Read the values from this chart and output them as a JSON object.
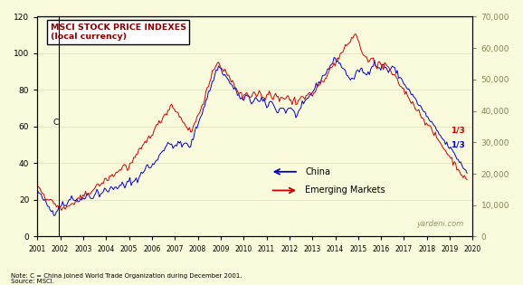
{
  "title_line1": "MSCI STOCK PRICE INDEXES",
  "title_line2": "(local currency)",
  "background_color": "#FAFADC",
  "china_color": "#0000CC",
  "em_color": "#CC0000",
  "left_ylim": [
    0,
    120
  ],
  "right_ylim": [
    0,
    70000
  ],
  "left_yticks": [
    0,
    20,
    40,
    60,
    80,
    100,
    120
  ],
  "right_yticks": [
    0,
    10000,
    20000,
    30000,
    40000,
    50000,
    60000,
    70000
  ],
  "note": "Note: C = China joined World Trade Organization during December 2001.",
  "source": "Source: MSCI.",
  "watermark": "yardeni.com",
  "china_label": "China",
  "em_label": "Emerging Markets",
  "annotation_c": "C",
  "annotation_13_blue": "1/3",
  "annotation_13_red": "1/3",
  "xlabel_years": [
    "2001",
    "2002",
    "2003",
    "2004",
    "2005",
    "2006",
    "2007",
    "2008",
    "2009",
    "2010",
    "2011",
    "2012",
    "2013",
    "2014",
    "2015",
    "2016",
    "2017",
    "2018",
    "2019",
    "2020"
  ],
  "china_data": [
    25,
    24,
    23,
    22,
    21,
    20,
    19,
    18,
    17,
    16,
    15,
    14,
    14,
    13,
    13,
    14,
    15,
    16,
    17,
    18,
    18,
    17,
    17,
    18,
    19,
    20,
    21,
    22,
    21,
    20,
    20,
    19,
    19,
    20,
    20,
    21,
    21,
    22,
    22,
    23,
    23,
    22,
    21,
    21,
    22,
    23,
    24,
    25,
    24,
    23,
    23,
    24,
    25,
    26,
    25,
    24,
    25,
    26,
    27,
    26,
    26,
    27,
    28,
    27,
    26,
    27,
    28,
    29,
    28,
    27,
    28,
    29,
    30,
    31,
    30,
    29,
    30,
    31,
    32,
    31,
    32,
    33,
    34,
    35,
    36,
    37,
    38,
    39,
    38,
    37,
    38,
    39,
    40,
    41,
    42,
    43,
    44,
    45,
    46,
    47,
    48,
    49,
    50,
    52,
    51,
    50,
    49,
    48,
    49,
    50,
    51,
    52,
    51,
    50,
    49,
    50,
    51,
    52,
    50,
    49,
    48,
    50,
    52,
    54,
    56,
    58,
    60,
    62,
    64,
    66,
    68,
    70,
    72,
    74,
    76,
    78,
    80,
    82,
    84,
    86,
    88,
    90,
    92,
    93,
    92,
    91,
    90,
    89,
    88,
    87,
    86,
    85,
    84,
    83,
    82,
    81,
    80,
    79,
    78,
    77,
    76,
    75,
    74,
    75,
    76,
    77,
    76,
    75,
    74,
    73,
    74,
    75,
    76,
    75,
    74,
    73,
    74,
    75,
    74,
    73,
    72,
    71,
    72,
    73,
    74,
    73,
    72,
    71,
    70,
    69,
    68,
    69,
    70,
    71,
    70,
    69,
    68,
    69,
    70,
    71,
    70,
    69,
    68,
    67,
    66,
    67,
    68,
    69,
    70,
    71,
    72,
    73,
    74,
    75,
    76,
    77,
    78,
    79,
    80,
    81,
    82,
    83,
    84,
    85,
    86,
    87,
    88,
    89,
    90,
    91,
    92,
    93,
    94,
    95,
    96,
    97,
    97,
    96,
    95,
    94,
    93,
    92,
    91,
    90,
    89,
    88,
    87,
    86,
    85,
    86,
    87,
    88,
    89,
    90,
    91,
    92,
    91,
    90,
    89,
    88,
    89,
    90,
    91,
    92,
    93,
    94,
    95,
    94,
    93,
    92,
    91,
    92,
    93,
    94,
    93,
    92,
    91,
    90,
    91,
    92,
    93,
    92,
    91,
    90,
    89,
    88,
    87,
    86,
    85,
    84,
    83,
    82,
    81,
    80,
    79,
    78,
    77,
    76,
    75,
    74,
    73,
    72,
    71,
    70,
    69,
    68,
    67,
    66,
    65,
    64,
    63,
    62,
    61,
    60,
    59,
    58,
    57,
    56,
    55,
    54,
    53,
    52,
    51,
    50,
    50,
    49,
    48,
    47,
    46,
    45,
    44,
    43,
    42,
    41,
    40,
    39,
    38,
    37,
    36,
    35
  ],
  "em_data": [
    28,
    27,
    26,
    25,
    24,
    23,
    22,
    21,
    21,
    20,
    20,
    19,
    19,
    18,
    18,
    17,
    17,
    16,
    16,
    15,
    15,
    15,
    15,
    16,
    16,
    17,
    17,
    18,
    18,
    18,
    19,
    19,
    20,
    20,
    21,
    21,
    22,
    22,
    23,
    23,
    24,
    24,
    25,
    25,
    26,
    26,
    27,
    27,
    28,
    28,
    29,
    29,
    30,
    30,
    31,
    31,
    32,
    32,
    33,
    33,
    34,
    34,
    35,
    35,
    36,
    36,
    37,
    38,
    39,
    39,
    38,
    37,
    38,
    39,
    40,
    41,
    42,
    43,
    44,
    45,
    46,
    47,
    48,
    49,
    50,
    51,
    52,
    53,
    54,
    55,
    56,
    57,
    58,
    59,
    60,
    61,
    62,
    63,
    64,
    65,
    66,
    67,
    68,
    69,
    70,
    71,
    72,
    71,
    70,
    69,
    68,
    67,
    66,
    65,
    64,
    63,
    62,
    61,
    60,
    59,
    58,
    57,
    58,
    60,
    62,
    63,
    65,
    66,
    68,
    70,
    72,
    74,
    76,
    78,
    80,
    82,
    84,
    86,
    88,
    90,
    92,
    94,
    96,
    95,
    94,
    93,
    92,
    91,
    90,
    89,
    88,
    87,
    86,
    85,
    84,
    83,
    82,
    81,
    80,
    79,
    78,
    77,
    76,
    77,
    78,
    79,
    78,
    77,
    76,
    77,
    78,
    79,
    78,
    77,
    78,
    79,
    78,
    77,
    76,
    75,
    76,
    77,
    78,
    79,
    78,
    77,
    76,
    77,
    78,
    77,
    76,
    75,
    76,
    77,
    76,
    75,
    76,
    77,
    76,
    75,
    74,
    73,
    74,
    75,
    74,
    73,
    74,
    75,
    76,
    77,
    76,
    75,
    76,
    77,
    78,
    79,
    78,
    77,
    78,
    79,
    80,
    81,
    82,
    83,
    84,
    85,
    86,
    87,
    88,
    89,
    90,
    91,
    92,
    93,
    94,
    95,
    96,
    97,
    98,
    99,
    100,
    101,
    102,
    103,
    104,
    105,
    106,
    107,
    108,
    109,
    110,
    111,
    109,
    107,
    105,
    103,
    101,
    100,
    99,
    98,
    97,
    96,
    95,
    96,
    97,
    96,
    95,
    94,
    93,
    94,
    95,
    94,
    93,
    92,
    93,
    94,
    93,
    92,
    91,
    90,
    89,
    88,
    87,
    86,
    85,
    84,
    83,
    82,
    81,
    80,
    79,
    78,
    77,
    76,
    75,
    74,
    73,
    72,
    71,
    70,
    69,
    68,
    67,
    66,
    65,
    64,
    63,
    62,
    61,
    60,
    59,
    58,
    57,
    56,
    55,
    54,
    53,
    52,
    51,
    50,
    49,
    48,
    47,
    46,
    45,
    44,
    43,
    42,
    41,
    40,
    39,
    38,
    37,
    36,
    35,
    34,
    33,
    32,
    31,
    30
  ]
}
